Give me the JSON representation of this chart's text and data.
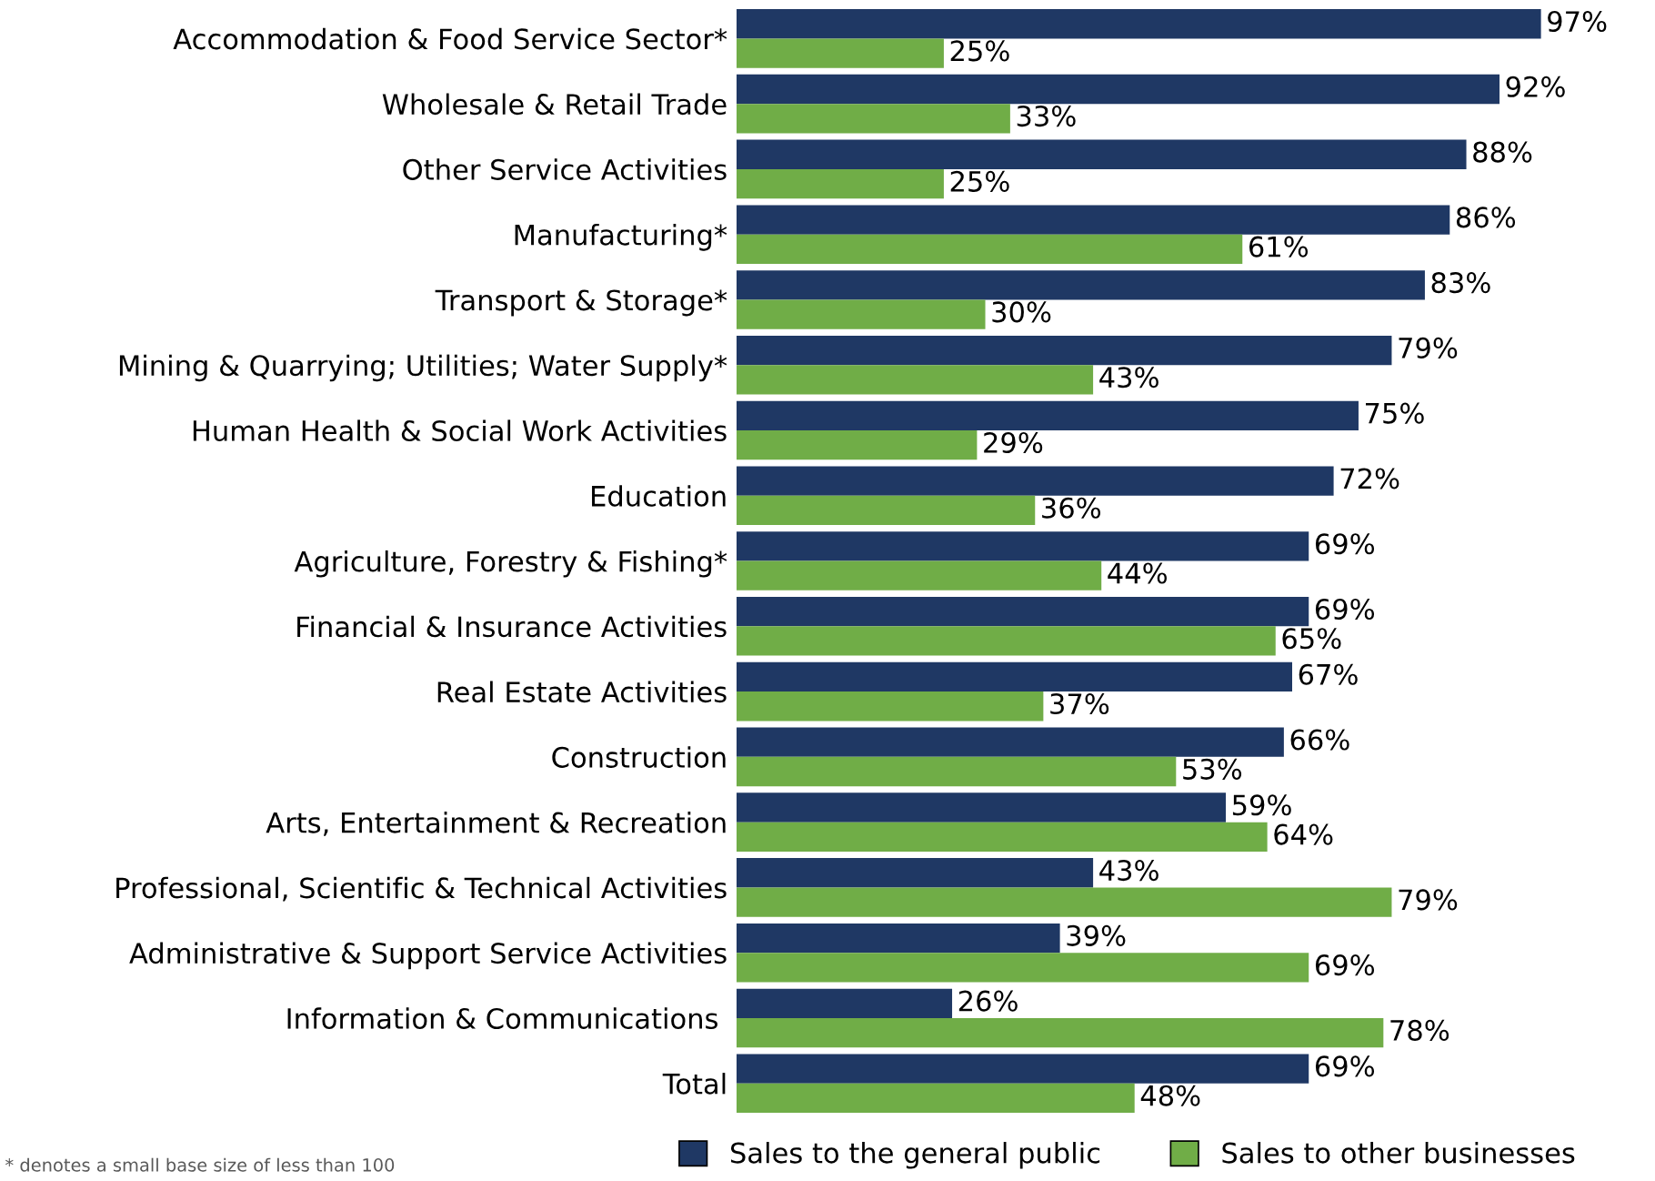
{
  "chart_data": {
    "type": "bar",
    "orientation": "horizontal",
    "categories": [
      "Accommodation & Food Service Sector*",
      "Wholesale & Retail Trade",
      "Other Service Activities",
      "Manufacturing*",
      "Transport & Storage*",
      "Mining & Quarrying; Utilities; Water Supply*",
      "Human Health & Social Work Activities",
      "Education",
      "Agriculture, Forestry & Fishing*",
      "Financial & Insurance Activities",
      "Real Estate Activities",
      "Construction",
      "Arts, Entertainment & Recreation",
      "Professional, Scientific & Technical Activities",
      "Administrative & Support Service Activities",
      "Information & Communications ",
      "Total"
    ],
    "series": [
      {
        "name": "Sales to the general public",
        "color": "#1f3864",
        "values": [
          97,
          92,
          88,
          86,
          83,
          79,
          75,
          72,
          69,
          69,
          67,
          66,
          59,
          43,
          39,
          26,
          69
        ],
        "value_labels": [
          "97%",
          "92%",
          "88%",
          "86%",
          "83%",
          "79%",
          "75%",
          "72%",
          "69%",
          "69%",
          "67%",
          "66%",
          "59%",
          "43%",
          "39%",
          "26%",
          "69%"
        ]
      },
      {
        "name": "Sales to other businesses",
        "color": "#70ad47",
        "values": [
          25,
          33,
          25,
          61,
          30,
          43,
          29,
          36,
          44,
          65,
          37,
          53,
          64,
          79,
          69,
          78,
          48
        ],
        "value_labels": [
          "25%",
          "33%",
          "25%",
          "61%",
          "30%",
          "43%",
          "29%",
          "36%",
          "44%",
          "65%",
          "37%",
          "53%",
          "64%",
          "79%",
          "69%",
          "78%",
          "48%"
        ]
      }
    ],
    "legend": "bottom",
    "grid": false,
    "annotations": [
      "* denotes a small base size of less than 100"
    ]
  }
}
